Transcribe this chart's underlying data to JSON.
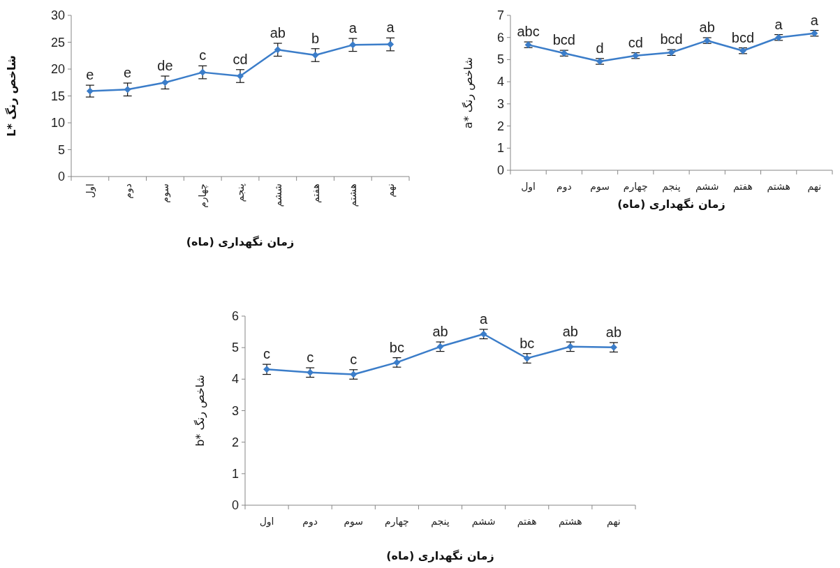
{
  "chart_data": [
    {
      "type": "line",
      "categories": [
        "اول",
        "دوم",
        "سوم",
        "چهارم",
        "پنجم",
        "ششم",
        "هفتم",
        "هشتم",
        "نهم"
      ],
      "values": [
        15.9,
        16.2,
        17.5,
        19.4,
        18.7,
        23.6,
        22.6,
        24.5,
        24.6
      ],
      "errors": [
        1.1,
        1.2,
        1.2,
        1.2,
        1.2,
        1.2,
        1.2,
        1.2,
        1.2
      ],
      "color": "#3b7dc9",
      "marker": "diamond",
      "ylim": [
        0,
        30
      ],
      "yticks": [
        0,
        5,
        10,
        15,
        20,
        25,
        30
      ],
      "ylabel": "شاخص رنگ *L",
      "xlabel": "زمان نگهداری (ماه)",
      "annotations": [
        {
          "text": "e",
          "x": "اول",
          "y": 15.9
        },
        {
          "text": "e",
          "x": "دوم",
          "y": 16.2
        },
        {
          "text": "de",
          "x": "سوم",
          "y": 17.5
        },
        {
          "text": "c",
          "x": "چهارم",
          "y": 19.4
        },
        {
          "text": "cd",
          "x": "پنجم",
          "y": 18.7
        },
        {
          "text": "ab",
          "x": "ششم",
          "y": 23.6
        },
        {
          "text": "b",
          "x": "هفتم",
          "y": 22.6
        },
        {
          "text": "a",
          "x": "هشتم",
          "y": 24.5
        },
        {
          "text": "a",
          "x": "نهم",
          "y": 24.6
        }
      ]
    },
    {
      "type": "line",
      "categories": [
        "اول",
        "دوم",
        "سوم",
        "چهارم",
        "پنجم",
        "ششم",
        "هفتم",
        "هشتم",
        "نهم"
      ],
      "values": [
        5.67,
        5.29,
        4.92,
        5.18,
        5.32,
        5.86,
        5.4,
        6.0,
        6.19
      ],
      "errors": [
        0.13,
        0.13,
        0.13,
        0.13,
        0.13,
        0.13,
        0.13,
        0.13,
        0.13
      ],
      "color": "#3b7dc9",
      "marker": "diamond",
      "ylim": [
        0,
        7
      ],
      "yticks": [
        0,
        1,
        2,
        3,
        4,
        5,
        6,
        7
      ],
      "ylabel": "شاخص رنگ *a",
      "xlabel": "زمان نگهداری (ماه)",
      "annotations": [
        {
          "text": "abc",
          "x": "اول",
          "y": 5.67
        },
        {
          "text": "bcd",
          "x": "دوم",
          "y": 5.29
        },
        {
          "text": "d",
          "x": "سوم",
          "y": 4.92
        },
        {
          "text": "cd",
          "x": "چهارم",
          "y": 5.18
        },
        {
          "text": "bcd",
          "x": "پنجم",
          "y": 5.32
        },
        {
          "text": "ab",
          "x": "ششم",
          "y": 5.86
        },
        {
          "text": "bcd",
          "x": "هفتم",
          "y": 5.4
        },
        {
          "text": "a",
          "x": "هشتم",
          "y": 6.0
        },
        {
          "text": "a",
          "x": "نهم",
          "y": 6.19
        }
      ]
    },
    {
      "type": "line",
      "categories": [
        "اول",
        "دوم",
        "سوم",
        "چهارم",
        "پنجم",
        "ششم",
        "هفتم",
        "هشتم",
        "نهم"
      ],
      "values": [
        4.31,
        4.21,
        4.15,
        4.53,
        5.03,
        5.43,
        4.66,
        5.03,
        5.01
      ],
      "errors": [
        0.16,
        0.15,
        0.15,
        0.15,
        0.15,
        0.15,
        0.15,
        0.15,
        0.15
      ],
      "color": "#3b7dc9",
      "marker": "diamond",
      "ylim": [
        0,
        6
      ],
      "yticks": [
        0,
        1,
        2,
        3,
        4,
        5,
        6
      ],
      "ylabel": "شاخص رنگ *b",
      "xlabel": "زمان نگهداری (ماه)",
      "annotations": [
        {
          "text": "c",
          "x": "اول",
          "y": 4.31
        },
        {
          "text": "c",
          "x": "دوم",
          "y": 4.21
        },
        {
          "text": "c",
          "x": "سوم",
          "y": 4.15
        },
        {
          "text": "bc",
          "x": "چهارم",
          "y": 4.53
        },
        {
          "text": "ab",
          "x": "پنجم",
          "y": 5.03
        },
        {
          "text": "a",
          "x": "ششم",
          "y": 5.43
        },
        {
          "text": "bc",
          "x": "هفتم",
          "y": 4.66
        },
        {
          "text": "ab",
          "x": "هشتم",
          "y": 5.03
        },
        {
          "text": "ab",
          "x": "نهم",
          "y": 5.01
        }
      ]
    }
  ]
}
